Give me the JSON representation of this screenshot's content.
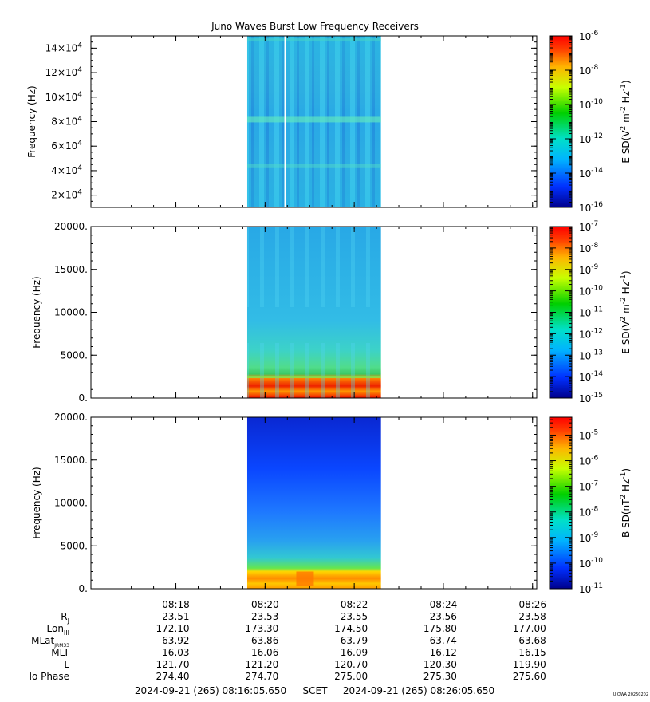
{
  "title": "Juno Waves Burst Low Frequency Receivers",
  "chart_data": [
    {
      "type": "heatmap",
      "panel": "top",
      "ylabel": "Frequency (Hz)",
      "yticks": [
        {
          "v": 20000,
          "m": "2×10",
          "e": "4"
        },
        {
          "v": 40000,
          "m": "4×10",
          "e": "4"
        },
        {
          "v": 60000,
          "m": "6×10",
          "e": "4"
        },
        {
          "v": 80000,
          "m": "8×10",
          "e": "4"
        },
        {
          "v": 100000,
          "m": "10×10",
          "e": "4"
        },
        {
          "v": 120000,
          "m": "12×10",
          "e": "4"
        },
        {
          "v": 140000,
          "m": "14×10",
          "e": "4"
        }
      ],
      "ylim": [
        10000,
        150000
      ],
      "colorbar": {
        "label_main": "E SD(V",
        "label_sup1": "2",
        "label_mid": " m",
        "label_sup2": "-2",
        "label_end": " Hz",
        "label_sup3": "-1",
        "label_close": ")",
        "scale": "log",
        "range": [
          -16,
          -6
        ],
        "ticks": [
          {
            "b": "10",
            "e": "-6"
          },
          {
            "b": "10",
            "e": "-8"
          },
          {
            "b": "10",
            "e": "-10"
          },
          {
            "b": "10",
            "e": "-12"
          },
          {
            "b": "10",
            "e": "-14"
          },
          {
            "b": "10",
            "e": "-16"
          }
        ]
      },
      "data_start": "08:19:36",
      "data_end": "08:22:36"
    },
    {
      "type": "heatmap",
      "panel": "middle",
      "ylabel": "Frequency (Hz)",
      "yticks": [
        {
          "v": 0,
          "label": "0."
        },
        {
          "v": 5000,
          "label": "5000."
        },
        {
          "v": 10000,
          "label": "10000."
        },
        {
          "v": 15000,
          "label": "15000."
        },
        {
          "v": 20000,
          "label": "20000."
        }
      ],
      "ylim": [
        0,
        20000
      ],
      "colorbar": {
        "label_main": "E SD(V",
        "label_sup1": "2",
        "label_mid": " m",
        "label_sup2": "-2",
        "label_end": " Hz",
        "label_sup3": "-1",
        "label_close": ")",
        "scale": "log",
        "range": [
          -15,
          -7
        ],
        "ticks": [
          {
            "b": "10",
            "e": "-7"
          },
          {
            "b": "10",
            "e": "-8"
          },
          {
            "b": "10",
            "e": "-9"
          },
          {
            "b": "10",
            "e": "-10"
          },
          {
            "b": "10",
            "e": "-11"
          },
          {
            "b": "10",
            "e": "-12"
          },
          {
            "b": "10",
            "e": "-13"
          },
          {
            "b": "10",
            "e": "-14"
          },
          {
            "b": "10",
            "e": "-15"
          }
        ]
      },
      "data_start": "08:19:36",
      "data_end": "08:22:36"
    },
    {
      "type": "heatmap",
      "panel": "bottom",
      "ylabel": "Frequency (Hz)",
      "yticks": [
        {
          "v": 0,
          "label": "0."
        },
        {
          "v": 5000,
          "label": "5000."
        },
        {
          "v": 10000,
          "label": "10000."
        },
        {
          "v": 15000,
          "label": "15000."
        },
        {
          "v": 20000,
          "label": "20000."
        }
      ],
      "ylim": [
        0,
        20000
      ],
      "colorbar": {
        "label_main": "B SD(nT",
        "label_sup1": "2",
        "label_mid": "",
        "label_sup2": "",
        "label_end": " Hz",
        "label_sup3": "-1",
        "label_close": ")",
        "scale": "log",
        "range": [
          -11,
          -4.3
        ],
        "ticks": [
          {
            "b": "10",
            "e": "-5"
          },
          {
            "b": "10",
            "e": "-6"
          },
          {
            "b": "10",
            "e": "-7"
          },
          {
            "b": "10",
            "e": "-8"
          },
          {
            "b": "10",
            "e": "-9"
          },
          {
            "b": "10",
            "e": "-10"
          },
          {
            "b": "10",
            "e": "-11"
          }
        ]
      },
      "data_start": "08:19:36",
      "data_end": "08:22:36"
    }
  ],
  "xaxis": {
    "ticks": [
      "08:18",
      "08:20",
      "08:22",
      "08:24",
      "08:26"
    ],
    "start": "08:16:05.650",
    "end": "08:26:05.650"
  },
  "ephemeris": {
    "rows": [
      {
        "label": "R",
        "sub": "J",
        "values": [
          "23.51",
          "23.53",
          "23.55",
          "23.56",
          "23.58"
        ]
      },
      {
        "label": "Lon",
        "sub": "III",
        "values": [
          "172.10",
          "173.30",
          "174.50",
          "175.80",
          "177.00"
        ]
      },
      {
        "label": "MLat",
        "sub": "JRM33",
        "values": [
          "-63.92",
          "-63.86",
          "-63.79",
          "-63.74",
          "-63.68"
        ]
      },
      {
        "label": "MLT",
        "sub": "",
        "values": [
          "16.03",
          "16.06",
          "16.09",
          "16.12",
          "16.15"
        ]
      },
      {
        "label": "L",
        "sub": "",
        "values": [
          "121.70",
          "121.20",
          "120.70",
          "120.30",
          "119.90"
        ]
      },
      {
        "label": "Io Phase",
        "sub": "",
        "values": [
          "274.40",
          "274.70",
          "275.00",
          "275.30",
          "275.60"
        ]
      }
    ]
  },
  "footer": {
    "start_label": "2024-09-21 (265) 08:16:05.650",
    "scet_label": "SCET",
    "end_label": "2024-09-21 (265) 08:26:05.650",
    "credit": "UIOWA 20250202"
  },
  "colors": {
    "low": "#0000b4",
    "blue": "#0a5aff",
    "cyan": "#14c8f0",
    "green": "#1ec81e",
    "yellow": "#ffe600",
    "orange": "#ff8c00",
    "red": "#ee1100"
  }
}
